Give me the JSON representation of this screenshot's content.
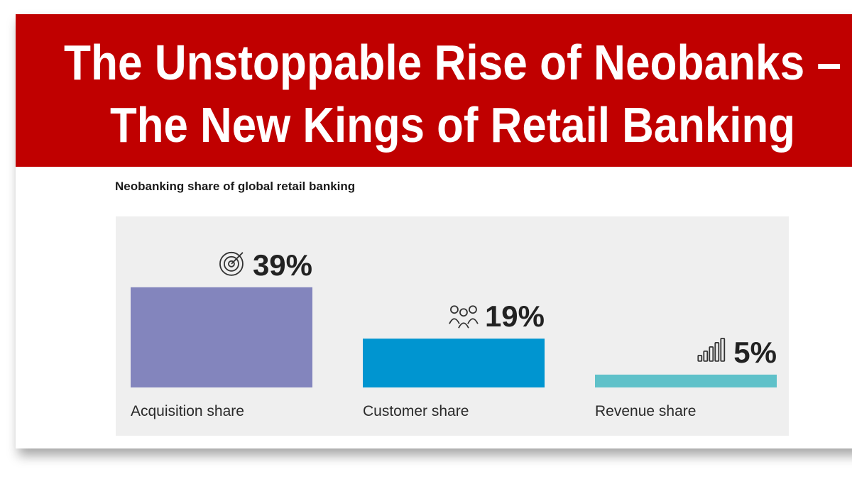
{
  "banner": {
    "title_lines": [
      "The Unstoppable Rise of Neobanks –",
      "The New Kings of Retail Banking"
    ]
  },
  "chart_data": {
    "type": "bar",
    "title": "Neobanking share of global retail banking",
    "categories": [
      "Acquisition share",
      "Customer share",
      "Revenue share"
    ],
    "values": [
      39,
      19,
      5
    ],
    "value_labels": [
      "39%",
      "19%",
      "5%"
    ],
    "colors": [
      "#8385bd",
      "#0095d0",
      "#5fc1c9"
    ]
  }
}
